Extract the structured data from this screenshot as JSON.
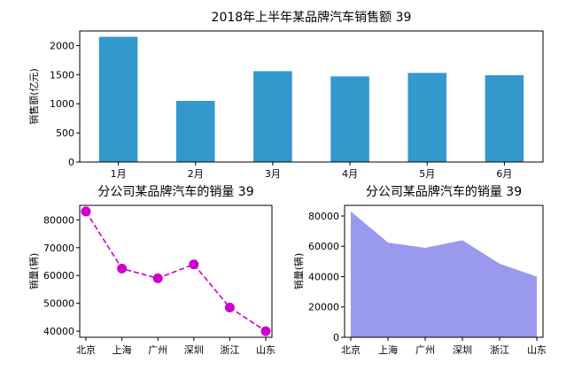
{
  "chart_data": [
    {
      "type": "bar",
      "title": "2018年上半年某品牌汽车销售额 39",
      "xlabel": "",
      "ylabel": "销售额(亿元)",
      "categories": [
        "1月",
        "2月",
        "3月",
        "4月",
        "5月",
        "6月"
      ],
      "values": [
        2150,
        1050,
        1560,
        1470,
        1530,
        1490
      ],
      "ylim": [
        0,
        2250
      ],
      "yticks": [
        0,
        500,
        1000,
        1500,
        2000
      ],
      "color": "#3399cc"
    },
    {
      "type": "line",
      "title": "分公司某品牌汽车的销量 39",
      "xlabel": "",
      "ylabel": "销量(辆)",
      "categories": [
        "北京",
        "上海",
        "广州",
        "深圳",
        "浙江",
        "山东"
      ],
      "values": [
        83000,
        62500,
        59000,
        64000,
        48500,
        40000
      ],
      "ylim": [
        37800,
        85200
      ],
      "yticks": [
        40000,
        50000,
        60000,
        70000,
        80000
      ],
      "color": "#cc00cc",
      "line_style": "dashed",
      "marker": "circle"
    },
    {
      "type": "area",
      "title": "分公司某品牌汽车的销量 39",
      "xlabel": "",
      "ylabel": "销量(辆)",
      "categories": [
        "北京",
        "上海",
        "广州",
        "深圳",
        "浙江",
        "山东"
      ],
      "values": [
        83000,
        62500,
        59000,
        64000,
        48500,
        40000
      ],
      "ylim": [
        0,
        87000
      ],
      "yticks": [
        0,
        20000,
        40000,
        60000,
        80000
      ],
      "color": "#9999ee"
    }
  ]
}
